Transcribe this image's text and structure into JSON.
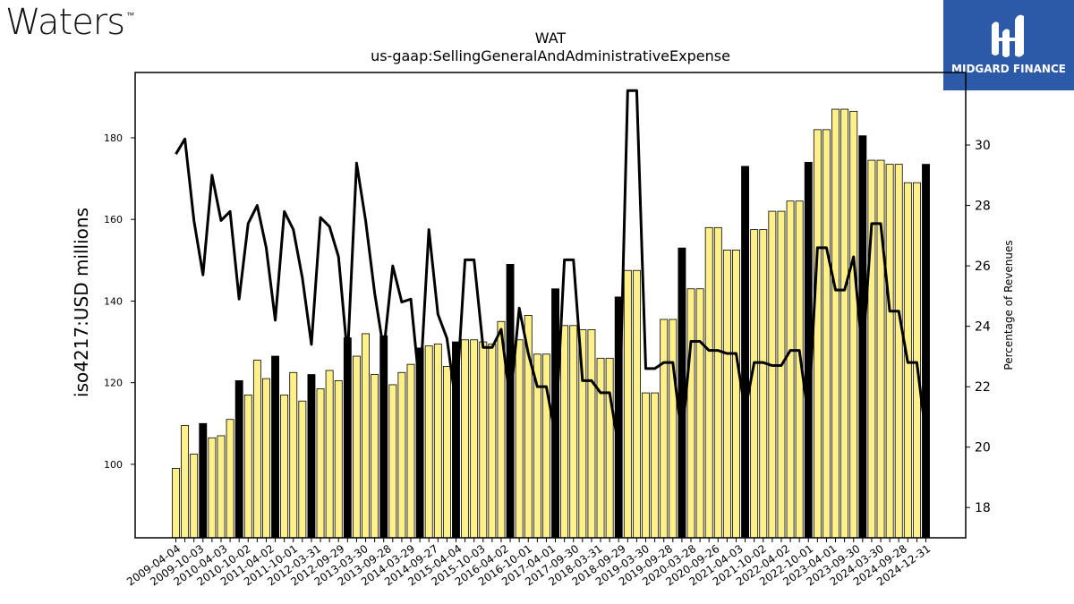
{
  "brand": {
    "logo_text": "Waters",
    "trademark": "™"
  },
  "publisher": {
    "name": "MIDGARD FINANCE"
  },
  "colors": {
    "bar_fill": "#fff089",
    "bar_fill_dark": "#000000",
    "bar_stroke": "#000000",
    "line": "#000000",
    "badge": "#2d5aa8"
  },
  "chart_data": {
    "type": "bar",
    "title": "WAT",
    "subtitle": "us-gaap:SellingGeneralAndAdministrativeExpense",
    "ylabel": "iso4217:USD  millions",
    "y2label": "Percentage of Revenues",
    "ylim": [
      82,
      196
    ],
    "y2lim": [
      17.0,
      32.4
    ],
    "yticks": [
      100,
      120,
      140,
      160,
      180
    ],
    "y2ticks": [
      18,
      20,
      22,
      24,
      26,
      28,
      30
    ],
    "x_tick_labels": [
      "2009-04-04",
      "2009-10-03",
      "2010-04-03",
      "2010-10-02",
      "2011-04-02",
      "2011-10-01",
      "2012-03-31",
      "2012-09-29",
      "2013-03-30",
      "2013-09-28",
      "2014-03-29",
      "2014-09-27",
      "2015-04-04",
      "2015-10-03",
      "2016-04-02",
      "2016-10-01",
      "2017-04-01",
      "2017-09-30",
      "2018-03-31",
      "2018-09-29",
      "2019-03-30",
      "2019-09-28",
      "2020-03-28",
      "2020-09-26",
      "2021-04-03",
      "2021-10-02",
      "2022-04-02",
      "2022-10-01",
      "2023-04-01",
      "2023-09-30",
      "2024-03-30",
      "2024-09-28",
      "2024-12-31"
    ],
    "bars": {
      "values": [
        99,
        109.5,
        102.5,
        110,
        106.5,
        107,
        111,
        120.5,
        117,
        125.5,
        121,
        126.5,
        117,
        122.5,
        115.5,
        122,
        118.5,
        123,
        120.5,
        131,
        126.5,
        132,
        122,
        131.5,
        119.5,
        122.5,
        124.5,
        128.5,
        129,
        129.5,
        124,
        130,
        130.5,
        130.5,
        130,
        129.5,
        135,
        149,
        130.5,
        136.5,
        127,
        127,
        143,
        134,
        134,
        133,
        133,
        126,
        126,
        141,
        147.5,
        147.5,
        117.5,
        117.5,
        135.5,
        135.5,
        153,
        143,
        143,
        158,
        158,
        152.5,
        152.5,
        173,
        157.5,
        157.5,
        162,
        162,
        164.5,
        164.5,
        174,
        182,
        182,
        187,
        187,
        186.5,
        180.5,
        174.5,
        174.5,
        173.5,
        173.5,
        169,
        169,
        173.5
      ],
      "dark_flags": [
        0,
        0,
        0,
        1,
        0,
        0,
        0,
        1,
        0,
        0,
        0,
        1,
        0,
        0,
        0,
        1,
        0,
        0,
        0,
        1,
        0,
        0,
        0,
        1,
        0,
        0,
        0,
        1,
        0,
        0,
        0,
        1,
        0,
        0,
        0,
        0,
        0,
        1,
        0,
        0,
        0,
        0,
        1,
        0,
        0,
        0,
        0,
        0,
        0,
        1,
        0,
        0,
        0,
        0,
        0,
        0,
        1,
        0,
        0,
        0,
        0,
        0,
        0,
        1,
        0,
        0,
        0,
        0,
        0,
        0,
        1,
        0,
        0,
        0,
        0,
        0,
        1,
        0,
        0,
        0,
        0,
        0,
        0,
        1
      ]
    },
    "line": {
      "name": "Percentage of Revenues",
      "values": [
        29.7,
        30.2,
        27.5,
        25.7,
        29,
        27.5,
        27.8,
        24.9,
        27.4,
        28,
        26.6,
        24.2,
        27.8,
        27.2,
        25.6,
        23.4,
        27.6,
        27.3,
        26.3,
        23,
        29.4,
        27.5,
        25.1,
        23.2,
        26,
        24.8,
        24.9,
        21.9,
        27.2,
        24.4,
        23.6,
        21.4,
        26.2,
        26.2,
        23.3,
        23.3,
        23.9,
        21.5,
        24.6,
        23.1,
        22,
        22,
        20.4,
        26.2,
        26.2,
        22.2,
        22.2,
        21.8,
        21.8,
        20,
        31.8,
        31.8,
        22.6,
        22.6,
        22.8,
        22.8,
        20.3,
        23.5,
        23.5,
        23.2,
        23.2,
        23.1,
        23.1,
        21.2,
        22.8,
        22.8,
        22.7,
        22.7,
        23.2,
        23.2,
        21,
        26.6,
        26.6,
        25.2,
        25.2,
        26.3,
        23,
        27.4,
        27.4,
        24.5,
        24.5,
        22.8,
        22.8,
        20.4
      ]
    }
  }
}
